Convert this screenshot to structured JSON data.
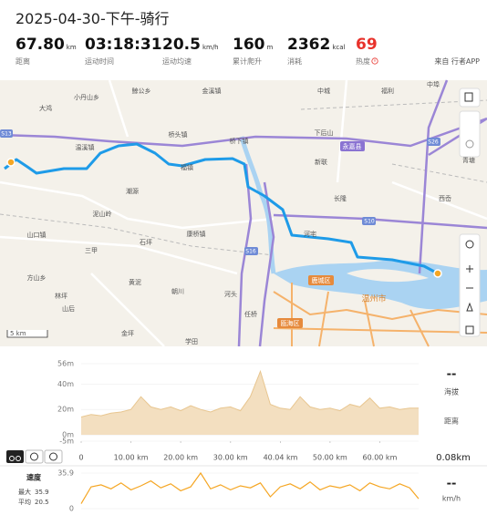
{
  "header": {
    "title": "2025-04-30-下午-骑行",
    "stats": [
      {
        "value": "67.80",
        "unit": "km",
        "label": "距离"
      },
      {
        "value": "03:18:31",
        "unit": "",
        "label": "运动时间"
      },
      {
        "value": "20.5",
        "unit": "km/h",
        "label": "运动均速"
      },
      {
        "value": "160",
        "unit": "m",
        "label": "累计爬升"
      },
      {
        "value": "2362",
        "unit": "kcal",
        "label": "消耗"
      },
      {
        "value": "69",
        "unit": "",
        "label": "热度"
      }
    ],
    "source": "来自 行者APP"
  },
  "map": {
    "places": [
      "大鸿",
      "小丹山乡",
      "鲸公乡",
      "金溪镇",
      "中城",
      "福利",
      "中埠",
      "桥头镇",
      "温溪镇",
      "桥下镇",
      "下后山",
      "永嘉县",
      "福镇",
      "新联",
      "青塘",
      "潮源",
      "长隆",
      "西岙",
      "泥山岭",
      "石坪",
      "康桥镇",
      "河宅",
      "山口镇",
      "三甲",
      "方山乡",
      "林坪",
      "黄泥",
      "山后",
      "鹿城区",
      "温州市",
      "朝川",
      "河头",
      "任桥",
      "瓯海区",
      "金坪",
      "学田"
    ],
    "roads": [
      "S13",
      "S26",
      "S10",
      "S16"
    ],
    "scale": "5 km"
  },
  "chart_data": [
    {
      "type": "area",
      "color": "#f3dfc0",
      "line_color": "#e8c690",
      "x": [
        0,
        2,
        4,
        6,
        8,
        10,
        12,
        14,
        16,
        18,
        20,
        22,
        24,
        26,
        28,
        30,
        32,
        34,
        36,
        38,
        40,
        42,
        44,
        46,
        48,
        50,
        52,
        54,
        56,
        58,
        60,
        62,
        64,
        66,
        67.8
      ],
      "values": [
        14,
        16,
        15,
        17,
        18,
        20,
        30,
        22,
        20,
        22,
        19,
        23,
        20,
        18,
        21,
        22,
        19,
        30,
        50,
        24,
        21,
        20,
        30,
        22,
        20,
        21,
        19,
        24,
        22,
        29,
        21,
        22,
        20,
        21,
        21
      ],
      "xlim": [
        0,
        67.8
      ],
      "ylim": [
        -5,
        56
      ],
      "yticks": [
        {
          "value": 56,
          "label": "56m"
        },
        {
          "value": 40,
          "label": "40m"
        },
        {
          "value": 20,
          "label": "20m"
        },
        {
          "value": 0,
          "label": "0m"
        },
        {
          "value": -5,
          "label": "-5m"
        }
      ],
      "xticks": [
        0,
        {
          "value": 10,
          "label": "10.00 km"
        },
        {
          "value": 20,
          "label": "20.00 km"
        },
        {
          "value": 30,
          "label": "30.00 km"
        },
        {
          "value": 40.04,
          "label": "40.04 km"
        },
        {
          "value": 50,
          "label": "50.00 km"
        },
        {
          "value": 60,
          "label": "60.00 km"
        }
      ],
      "cursor_label": "0.08km",
      "side_value": "--",
      "side_labels": [
        "海拔",
        "距离"
      ]
    },
    {
      "type": "line",
      "title": "速度",
      "color": "#f5a623",
      "x": [
        0,
        2,
        4,
        6,
        8,
        10,
        12,
        14,
        16,
        18,
        20,
        22,
        24,
        26,
        28,
        30,
        32,
        34,
        36,
        38,
        40,
        42,
        44,
        46,
        48,
        50,
        52,
        54,
        56,
        58,
        60,
        62,
        64,
        66,
        67.8
      ],
      "values": [
        5,
        22,
        24,
        20,
        26,
        19,
        23,
        28,
        21,
        25,
        18,
        22,
        35.9,
        20,
        24,
        19,
        23,
        21,
        26,
        12,
        22,
        25,
        20,
        27,
        19,
        23,
        21,
        24,
        18,
        26,
        22,
        20,
        25,
        21,
        10
      ],
      "xlim": [
        0,
        67.8
      ],
      "ylim": [
        0,
        35.9
      ],
      "yticks": [
        35.9,
        0
      ],
      "max_label": "最大",
      "max": 35.9,
      "avg_label": "平均",
      "avg": 20.5,
      "side_value": "--",
      "unit": "km/h"
    }
  ]
}
